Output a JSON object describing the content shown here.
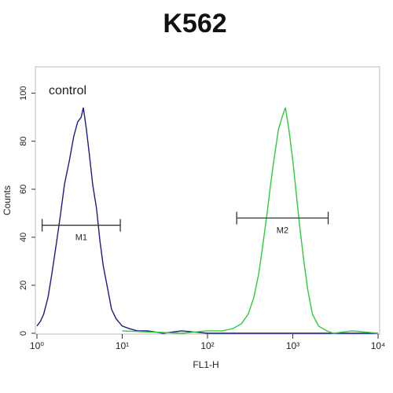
{
  "chart_data": {
    "type": "line",
    "title": "K562",
    "annotation": "control",
    "x_label": "FL1-H",
    "y_label": "Counts",
    "xlog": true,
    "xlim": [
      1,
      10000
    ],
    "xticks": [
      {
        "value": 1,
        "label": "10⁰"
      },
      {
        "value": 10,
        "label": "10¹"
      },
      {
        "value": 100,
        "label": "10²"
      },
      {
        "value": 1000,
        "label": "10³"
      },
      {
        "value": 10000,
        "label": "10⁴"
      }
    ],
    "ylim": [
      0,
      111
    ],
    "yticks": [
      0,
      20,
      40,
      60,
      80,
      100
    ],
    "series": [
      {
        "color": "#1c1c8a",
        "x": [
          1,
          1.1,
          1.2,
          1.35,
          1.5,
          1.7,
          1.9,
          2.1,
          2.4,
          2.7,
          3,
          3.3,
          3.5,
          3.8,
          4.1,
          4.5,
          5,
          5.5,
          6,
          6.8,
          7.5,
          8.5,
          10,
          12,
          15,
          20,
          30,
          50,
          100,
          1000,
          10000
        ],
        "values": [
          3,
          5,
          8,
          15,
          25,
          38,
          50,
          62,
          72,
          82,
          88,
          90,
          94,
          85,
          75,
          62,
          52,
          38,
          28,
          18,
          10,
          6,
          3,
          2,
          1,
          1,
          0,
          1,
          0,
          0,
          0
        ]
      },
      {
        "color": "#2ecc40",
        "x": [
          10,
          50,
          100,
          150,
          200,
          250,
          300,
          350,
          400,
          450,
          500,
          550,
          600,
          680,
          750,
          820,
          900,
          1000,
          1100,
          1200,
          1350,
          1500,
          1700,
          2000,
          2500,
          3000,
          5000,
          10000
        ],
        "values": [
          1,
          0,
          1,
          1,
          2,
          4,
          8,
          15,
          25,
          38,
          50,
          62,
          72,
          85,
          90,
          94,
          85,
          72,
          58,
          45,
          30,
          18,
          8,
          3,
          1,
          0,
          1,
          0
        ]
      }
    ],
    "markers": [
      {
        "label": "M1",
        "x": [
          1.15,
          9.5
        ],
        "y": 45
      },
      {
        "label": "M2",
        "x": [
          220,
          2600
        ],
        "y": 48
      }
    ]
  }
}
